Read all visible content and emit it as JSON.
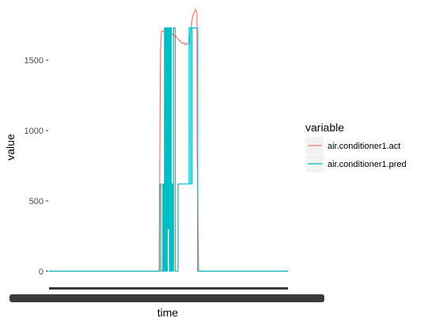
{
  "chart_data": {
    "type": "line",
    "title": "",
    "xlabel": "time",
    "ylabel": "value",
    "ylim": [
      -80,
      1900
    ],
    "xlim": [
      0,
      1000
    ],
    "y_ticks": [
      0,
      500,
      1000,
      1500
    ],
    "y_tick_labels": [
      "0",
      "500",
      "1000",
      "1500"
    ],
    "grid": false,
    "legend_position": "right",
    "legend_title": "variable",
    "colors": {
      "act": "#F8766D",
      "pred": "#00BFC4",
      "x_tick_overplot": "#3a3a3a"
    },
    "series": [
      {
        "name": "air.conditioner1.act",
        "color": "#F8766D",
        "points": [
          [
            0,
            0
          ],
          [
            461,
            0
          ],
          [
            463,
            620
          ],
          [
            466,
            1550
          ],
          [
            470,
            1700
          ],
          [
            474,
            1710
          ],
          [
            480,
            1705
          ],
          [
            486,
            1690
          ],
          [
            492,
            1680
          ],
          [
            498,
            1700
          ],
          [
            504,
            1685
          ],
          [
            510,
            1670
          ],
          [
            516,
            1690
          ],
          [
            522,
            1670
          ],
          [
            528,
            1680
          ],
          [
            534,
            1660
          ],
          [
            540,
            1650
          ],
          [
            546,
            1640
          ],
          [
            552,
            1630
          ],
          [
            558,
            1620
          ],
          [
            564,
            1625
          ],
          [
            570,
            1610
          ],
          [
            576,
            1620
          ],
          [
            582,
            1615
          ],
          [
            588,
            1620
          ],
          [
            592,
            1700
          ],
          [
            596,
            1760
          ],
          [
            600,
            1800
          ],
          [
            604,
            1830
          ],
          [
            608,
            1845
          ],
          [
            612,
            1860
          ],
          [
            616,
            1850
          ],
          [
            619,
            1830
          ],
          [
            620,
            800
          ],
          [
            622,
            620
          ],
          [
            626,
            0
          ],
          [
            1000,
            0
          ]
        ]
      },
      {
        "name": "air.conditioner1.pred",
        "color": "#00BFC4",
        "points": [
          [
            0,
            0
          ],
          [
            462,
            0
          ],
          [
            462,
            620
          ],
          [
            468,
            620
          ],
          [
            468,
            0
          ],
          [
            476,
            0
          ],
          [
            476,
            620
          ],
          [
            480,
            620
          ],
          [
            480,
            0
          ],
          [
            483,
            0
          ],
          [
            483,
            1730
          ],
          [
            487,
            1730
          ],
          [
            487,
            0
          ],
          [
            489,
            0
          ],
          [
            489,
            1730
          ],
          [
            493,
            1730
          ],
          [
            493,
            0
          ],
          [
            495,
            0
          ],
          [
            495,
            1730
          ],
          [
            498,
            1730
          ],
          [
            498,
            300
          ],
          [
            501,
            300
          ],
          [
            501,
            1730
          ],
          [
            504,
            1730
          ],
          [
            504,
            0
          ],
          [
            507,
            0
          ],
          [
            507,
            1730
          ],
          [
            511,
            1730
          ],
          [
            511,
            0
          ],
          [
            514,
            0
          ],
          [
            514,
            620
          ],
          [
            518,
            620
          ],
          [
            518,
            0
          ],
          [
            521,
            0
          ],
          [
            521,
            1730
          ],
          [
            528,
            1730
          ],
          [
            528,
            0
          ],
          [
            540,
            0
          ],
          [
            540,
            620
          ],
          [
            586,
            620
          ],
          [
            586,
            1730
          ],
          [
            592,
            1730
          ],
          [
            592,
            620
          ],
          [
            598,
            620
          ],
          [
            598,
            1730
          ],
          [
            622,
            1730
          ],
          [
            622,
            0
          ],
          [
            1000,
            0
          ]
        ]
      }
    ]
  }
}
